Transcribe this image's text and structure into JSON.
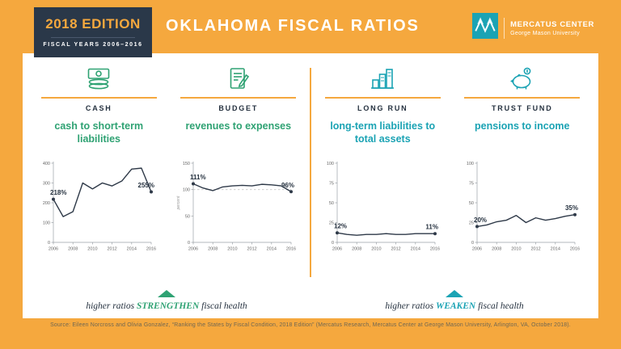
{
  "edition_badge": {
    "title": "2018 EDITION",
    "subtitle": "FISCAL YEARS 2006–2016"
  },
  "header": {
    "title": "OKLAHOMA FISCAL RATIOS"
  },
  "logo": {
    "name": "MERCATUS CENTER",
    "sub": "George Mason University"
  },
  "colors": {
    "yellow": "#F5A83E",
    "navy": "#2A3849",
    "green": "#2FA273",
    "teal": "#1BA3B4",
    "line": "#2E3948"
  },
  "columns": [
    {
      "label": "CASH",
      "title": "cash to short-term liabilities",
      "icon": "money-stack-icon",
      "accent": "#2FA273"
    },
    {
      "label": "BUDGET",
      "title": "revenues to expenses",
      "icon": "document-pencil-icon",
      "accent": "#2FA273"
    },
    {
      "label": "LONG RUN",
      "title": "long-term liabilities to total assets",
      "icon": "building-bars-icon",
      "accent": "#1BA3B4"
    },
    {
      "label": "TRUST FUND",
      "title": "pensions to income",
      "icon": "piggy-bank-icon",
      "accent": "#1BA3B4"
    }
  ],
  "chart_data": [
    {
      "type": "line",
      "title": "cash to short-term liabilities",
      "x": [
        2006,
        2007,
        2008,
        2009,
        2010,
        2011,
        2012,
        2013,
        2014,
        2015,
        2016
      ],
      "values": [
        218,
        130,
        155,
        300,
        270,
        300,
        285,
        310,
        370,
        375,
        255
      ],
      "ylim": [
        0,
        400
      ],
      "yticks": [
        0,
        100,
        200,
        300,
        400
      ],
      "xticks": [
        2006,
        2008,
        2010,
        2012,
        2014,
        2016
      ],
      "first_label": "218%",
      "last_label": "255%"
    },
    {
      "type": "line",
      "title": "revenues to expenses",
      "x": [
        2006,
        2007,
        2008,
        2009,
        2010,
        2011,
        2012,
        2013,
        2014,
        2015,
        2016
      ],
      "values": [
        111,
        103,
        98,
        105,
        107,
        108,
        107,
        110,
        109,
        107,
        96
      ],
      "ylim": [
        0,
        150
      ],
      "yticks": [
        0,
        50,
        100,
        150
      ],
      "xticks": [
        2006,
        2008,
        2010,
        2012,
        2014,
        2016
      ],
      "ref_line": 100,
      "ylabel": "percent",
      "first_label": "111%",
      "last_label": "96%"
    },
    {
      "type": "line",
      "title": "long-term liabilities to total assets",
      "x": [
        2006,
        2007,
        2008,
        2009,
        2010,
        2011,
        2012,
        2013,
        2014,
        2015,
        2016
      ],
      "values": [
        12,
        10,
        9,
        10,
        10,
        11,
        10,
        10,
        11,
        11,
        11
      ],
      "ylim": [
        0,
        100
      ],
      "yticks": [
        0,
        25,
        50,
        75,
        100
      ],
      "xticks": [
        2006,
        2008,
        2010,
        2012,
        2014,
        2016
      ],
      "first_label": "12%",
      "last_label": "11%"
    },
    {
      "type": "line",
      "title": "pensions to income",
      "x": [
        2006,
        2007,
        2008,
        2009,
        2010,
        2011,
        2012,
        2013,
        2014,
        2015,
        2016
      ],
      "values": [
        20,
        22,
        26,
        28,
        34,
        25,
        31,
        28,
        30,
        33,
        35
      ],
      "ylim": [
        0,
        100
      ],
      "yticks": [
        0,
        25,
        50,
        75,
        100
      ],
      "xticks": [
        2006,
        2008,
        2010,
        2012,
        2014,
        2016
      ],
      "first_label": "20%",
      "last_label": "35%"
    }
  ],
  "footers": [
    {
      "prefix": "higher ratios ",
      "keyword": "STRENGTHEN",
      "suffix": " fiscal health",
      "color": "#2FA273"
    },
    {
      "prefix": "higher ratios ",
      "keyword": "WEAKEN",
      "suffix": " fiscal health",
      "color": "#1BA3B4"
    }
  ],
  "source": "Source: Eileen Norcross and Olivia Gonzalez, “Ranking the States by Fiscal Condition, 2018 Edition” (Mercatus Research, Mercatus Center at George Mason University, Arlington, VA, October 2018)."
}
